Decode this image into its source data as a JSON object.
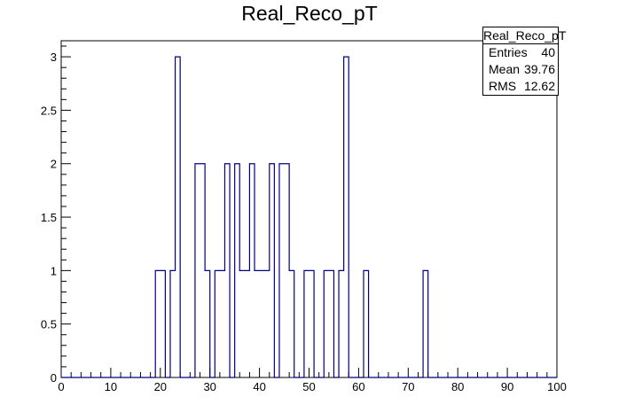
{
  "chart_data": {
    "type": "histogram",
    "title": "Real_Reco_pT",
    "xlabel": "",
    "ylabel": "",
    "xlim": [
      0,
      100
    ],
    "ylim": [
      0,
      3.15
    ],
    "bin_width": 1,
    "bins": [
      {
        "x0": 19,
        "x1": 21,
        "value": 1
      },
      {
        "x0": 22,
        "x1": 23,
        "value": 1
      },
      {
        "x0": 23,
        "x1": 24,
        "value": 3
      },
      {
        "x0": 27,
        "x1": 29,
        "value": 2
      },
      {
        "x0": 29,
        "x1": 30,
        "value": 1
      },
      {
        "x0": 31,
        "x1": 33,
        "value": 1
      },
      {
        "x0": 33,
        "x1": 34,
        "value": 2
      },
      {
        "x0": 35,
        "x1": 36,
        "value": 2
      },
      {
        "x0": 36,
        "x1": 38,
        "value": 1
      },
      {
        "x0": 38,
        "x1": 39,
        "value": 2
      },
      {
        "x0": 39,
        "x1": 42,
        "value": 1
      },
      {
        "x0": 42,
        "x1": 43,
        "value": 2
      },
      {
        "x0": 44,
        "x1": 46,
        "value": 2
      },
      {
        "x0": 46,
        "x1": 47,
        "value": 1
      },
      {
        "x0": 49,
        "x1": 51,
        "value": 1
      },
      {
        "x0": 53,
        "x1": 55,
        "value": 1
      },
      {
        "x0": 56,
        "x1": 57,
        "value": 1
      },
      {
        "x0": 57,
        "x1": 58,
        "value": 3
      },
      {
        "x0": 61,
        "x1": 62,
        "value": 1
      },
      {
        "x0": 73,
        "x1": 74,
        "value": 1
      }
    ],
    "x_ticks": [
      0,
      10,
      20,
      30,
      40,
      50,
      60,
      70,
      80,
      90,
      100
    ],
    "x_tick_labels": [
      "0",
      "10",
      "20",
      "30",
      "40",
      "50",
      "60",
      "70",
      "80",
      "90",
      "100"
    ],
    "y_ticks": [
      0,
      0.5,
      1,
      1.5,
      2,
      2.5,
      3
    ],
    "y_tick_labels": [
      "0",
      "0.5",
      "1",
      "1.5",
      "2",
      "2.5",
      "3"
    ],
    "line_color": "#000080",
    "grid": false,
    "legend": "none"
  },
  "stats_box": {
    "title": "Real_Reco_pT",
    "entries_label": "Entries",
    "entries_value": "40",
    "mean_label": "Mean",
    "mean_value": "39.76",
    "rms_label": "RMS",
    "rms_value": "12.62"
  }
}
